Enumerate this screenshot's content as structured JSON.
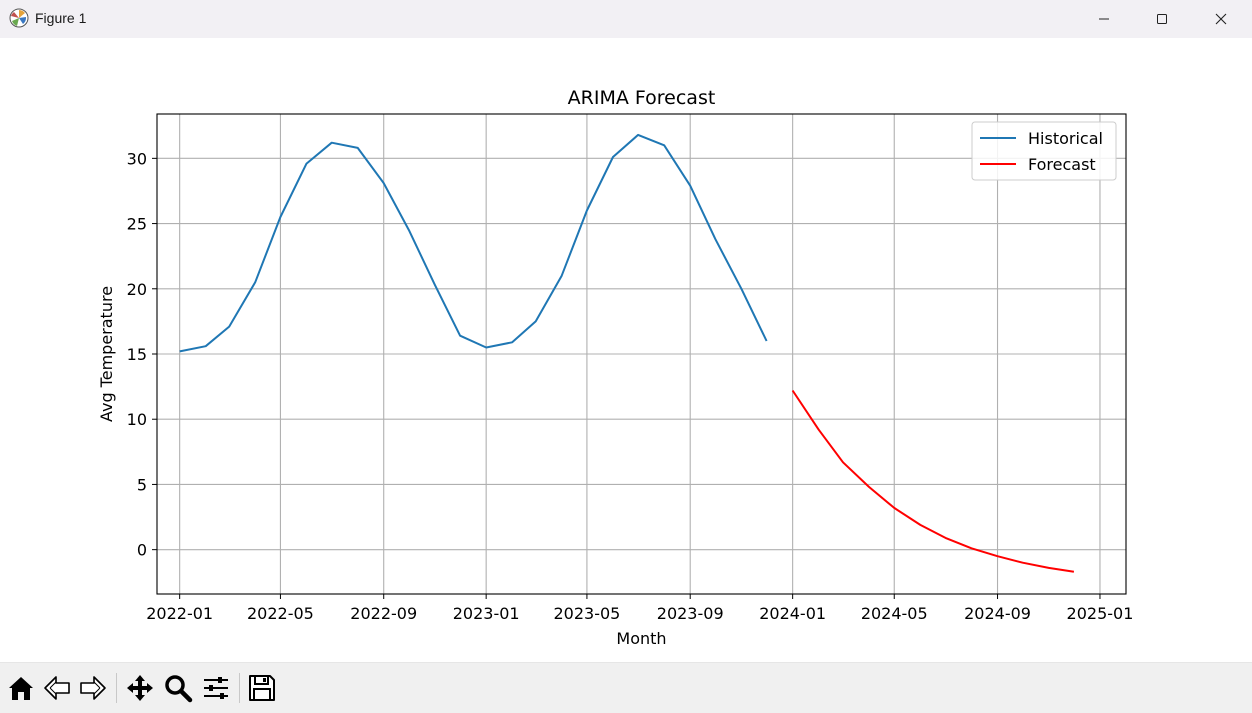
{
  "window": {
    "title": "Figure 1",
    "icons": [
      "matplotlib-logo-icon",
      "minimize-icon",
      "maximize-icon",
      "close-icon"
    ]
  },
  "toolbar": {
    "buttons": [
      {
        "name": "home-button",
        "icon": "home-icon"
      },
      {
        "name": "back-button",
        "icon": "back-arrow-icon"
      },
      {
        "name": "forward-button",
        "icon": "forward-arrow-icon"
      },
      {
        "name": "pan-button",
        "icon": "move-icon"
      },
      {
        "name": "zoom-button",
        "icon": "zoom-icon"
      },
      {
        "name": "configure-subplots-button",
        "icon": "sliders-icon"
      },
      {
        "name": "save-button",
        "icon": "save-icon"
      }
    ]
  },
  "chart_data": {
    "type": "line",
    "title": "ARIMA Forecast",
    "xlabel": "Month",
    "ylabel": "Avg Temperature",
    "xlim": [
      "2021-12-05",
      "2025-02-01"
    ],
    "ylim": [
      -3.4,
      33.4
    ],
    "x_ticks": [
      "2022-01",
      "2022-05",
      "2022-09",
      "2023-01",
      "2023-05",
      "2023-09",
      "2024-01",
      "2024-05",
      "2024-09",
      "2025-01"
    ],
    "y_ticks": [
      0,
      5,
      10,
      15,
      20,
      25,
      30
    ],
    "grid": true,
    "legend": "top-right",
    "series": [
      {
        "name": "Historical",
        "color": "#1f77b4",
        "x": [
          "2022-01-01",
          "2022-02-01",
          "2022-03-01",
          "2022-04-01",
          "2022-05-01",
          "2022-06-01",
          "2022-07-01",
          "2022-08-01",
          "2022-09-01",
          "2022-10-01",
          "2022-11-01",
          "2022-12-01",
          "2023-01-01",
          "2023-02-01",
          "2023-03-01",
          "2023-04-01",
          "2023-05-01",
          "2023-06-01",
          "2023-07-01",
          "2023-08-01",
          "2023-09-01",
          "2023-10-01",
          "2023-11-01",
          "2023-12-01"
        ],
        "y": [
          15.2,
          15.6,
          17.1,
          20.5,
          25.5,
          29.6,
          31.2,
          30.8,
          28.1,
          24.5,
          20.3,
          16.4,
          15.5,
          15.9,
          17.5,
          21.0,
          26.0,
          30.1,
          31.8,
          31.0,
          27.9,
          23.8,
          20.0,
          16.0
        ]
      },
      {
        "name": "Forecast",
        "color": "#ff0000",
        "x": [
          "2024-01-01",
          "2024-02-01",
          "2024-03-01",
          "2024-04-01",
          "2024-05-01",
          "2024-06-01",
          "2024-07-01",
          "2024-08-01",
          "2024-09-01",
          "2024-10-01",
          "2024-11-01",
          "2024-12-01"
        ],
        "y": [
          12.2,
          9.2,
          6.7,
          4.8,
          3.2,
          1.9,
          0.9,
          0.1,
          -0.5,
          -1.0,
          -1.4,
          -1.7
        ]
      }
    ]
  }
}
